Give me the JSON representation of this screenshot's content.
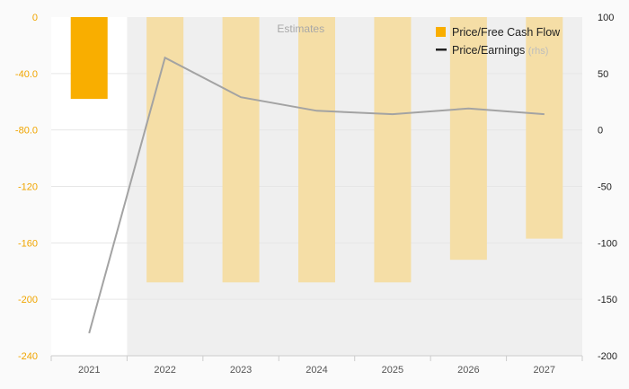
{
  "chart_data": {
    "type": "bar",
    "categories": [
      "2021",
      "2022",
      "2023",
      "2024",
      "2025",
      "2026",
      "2027"
    ],
    "estimates_label": "Estimates",
    "estimates_start_index": 1,
    "series": [
      {
        "name": "Price/Free Cash Flow",
        "type": "bar",
        "axis": "left",
        "color": "#f9ae00",
        "estimate_color": "#f5dea6",
        "values": [
          -58,
          -188,
          -188,
          -188,
          -188,
          -172,
          -157
        ]
      },
      {
        "name": "Price/Earnings",
        "name_suffix": "(rhs)",
        "type": "line",
        "axis": "right",
        "color": "#a3a3a3",
        "values": [
          -180,
          64,
          29,
          17,
          14,
          19,
          14
        ]
      }
    ],
    "yaxis_left": {
      "ylim": [
        -240,
        0
      ],
      "ticks": [
        "0",
        "-40.0",
        "-80.0",
        "-120",
        "-160",
        "-200",
        "-240"
      ]
    },
    "yaxis_right": {
      "ylim": [
        -200,
        100
      ],
      "ticks": [
        "100",
        "50",
        "0",
        "-50",
        "-100",
        "-150",
        "-200"
      ]
    },
    "legend_position": "top-right",
    "grid": true
  }
}
